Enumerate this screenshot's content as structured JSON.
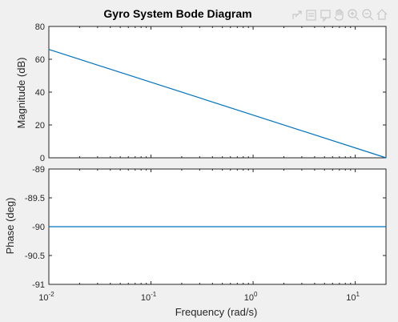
{
  "chart_data": {
    "type": "line",
    "title": "Gyro System Bode Diagram",
    "xlabel": "Frequency  (rad/s)",
    "xscale": "log",
    "xlim": [
      0.01,
      20
    ],
    "xticks": [
      {
        "base": "10",
        "exp": "-2",
        "value": 0.01
      },
      {
        "base": "10",
        "exp": "-1",
        "value": 0.1
      },
      {
        "base": "10",
        "exp": "0",
        "value": 1
      },
      {
        "base": "10",
        "exp": "1",
        "value": 10
      }
    ],
    "color": "#0072BD",
    "panels": [
      {
        "name": "magnitude",
        "ylabel": "Magnitude (dB)",
        "ylim": [
          0,
          80
        ],
        "yticks": [
          "0",
          "20",
          "40",
          "60",
          "80"
        ],
        "ytick_values": [
          0,
          20,
          40,
          60,
          80
        ],
        "series": [
          {
            "x": [
              0.01,
              20
            ],
            "y": [
              66,
              0
            ]
          }
        ]
      },
      {
        "name": "phase",
        "ylabel": "Phase (deg)",
        "ylim": [
          -91,
          -89
        ],
        "yticks": [
          "-91",
          "-90.5",
          "-90",
          "-89.5",
          "-89"
        ],
        "ytick_values": [
          -91,
          -90.5,
          -90,
          -89.5,
          -89
        ],
        "series": [
          {
            "x": [
              0.01,
              20
            ],
            "y": [
              -90,
              -90
            ]
          }
        ]
      }
    ]
  },
  "toolbar": {
    "icons": [
      "export-icon",
      "brush-icon",
      "data-tip-icon",
      "pan-icon",
      "zoom-in-icon",
      "zoom-out-icon",
      "home-icon"
    ]
  }
}
